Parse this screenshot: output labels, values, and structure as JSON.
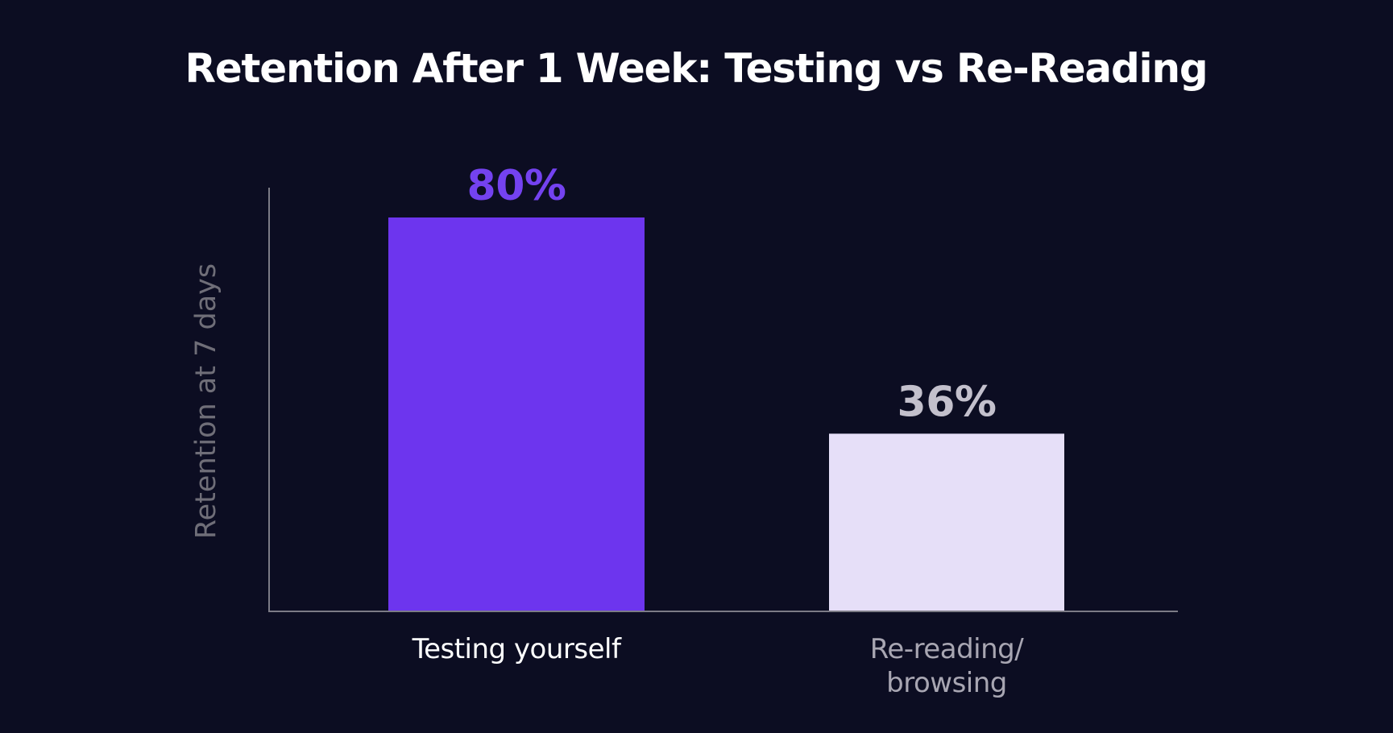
{
  "chart_data": {
    "type": "bar",
    "title": "Retention After 1 Week: Testing vs Re-Reading",
    "xlabel": "",
    "ylabel": "Retention at 7 days",
    "ylim": [
      0,
      100
    ],
    "grid": false,
    "legend": "none",
    "categories": [
      {
        "lines": [
          "Testing yourself"
        ]
      },
      {
        "lines": [
          "Re-reading/",
          "browsing"
        ]
      }
    ],
    "values": [
      80,
      36
    ],
    "value_labels": [
      "80%",
      "36%"
    ],
    "colors": {
      "background": "#0c0d22",
      "bars": [
        "#6d35ee",
        "#e6dff8"
      ],
      "value_labels": [
        "#7442f0",
        "#c3c0cc"
      ],
      "category_labels": [
        "#ffffff",
        "#a8a6b2"
      ],
      "axis": "#7c7b86",
      "axis_label": "#6f6e78",
      "title": "#ffffff"
    }
  }
}
